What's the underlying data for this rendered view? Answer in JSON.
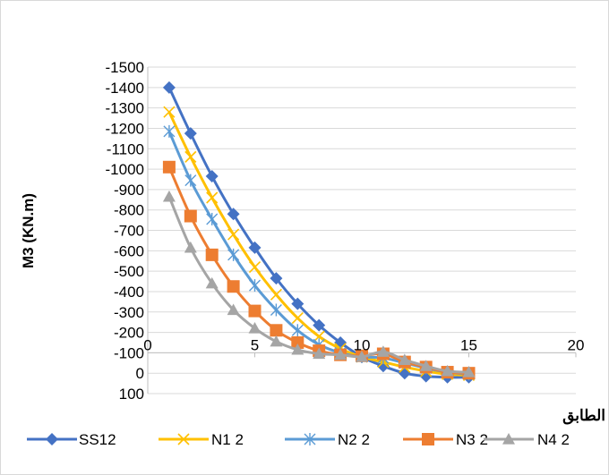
{
  "chart_data": {
    "type": "line",
    "xlabel": "الطابق",
    "ylabel": "M3 (KN.m)",
    "xlim": [
      0,
      20
    ],
    "ylim": [
      -1500,
      100
    ],
    "y_reversed": true,
    "x_axis_crosses_at_y": -100,
    "grid": "horizontal",
    "legend_position": "bottom",
    "x_ticks": [
      0,
      5,
      10,
      15,
      20
    ],
    "y_ticks": [
      100,
      0,
      -100,
      -200,
      -300,
      -400,
      -500,
      -600,
      -700,
      -800,
      -900,
      -1000,
      -1100,
      -1200,
      -1300,
      -1400,
      -1500
    ],
    "x_tick_labels": [
      "0",
      "5",
      "10",
      "15",
      "20"
    ],
    "y_tick_labels": [
      "100",
      "0",
      "-100",
      "-200",
      "-300",
      "-400",
      "-500",
      "-600",
      "-700",
      "-800",
      "-900",
      "-1000",
      "-1100",
      "-1200",
      "-1300",
      "-1400",
      "-1500"
    ],
    "x": [
      1,
      2,
      3,
      4,
      5,
      6,
      7,
      8,
      9,
      10,
      11,
      12,
      13,
      14,
      15
    ],
    "series": [
      {
        "name": "SS12",
        "color": "#4472C4",
        "marker": "diamond",
        "values": [
          -1400,
          -1175,
          -965,
          -780,
          -615,
          -465,
          -340,
          -235,
          -150,
          -80,
          -35,
          0,
          15,
          20,
          20
        ]
      },
      {
        "name": "N1 2",
        "color": "#FFC000",
        "marker": "x",
        "values": [
          -1280,
          -1060,
          -860,
          -680,
          -520,
          -385,
          -270,
          -180,
          -120,
          -80,
          -55,
          -30,
          -10,
          5,
          10
        ]
      },
      {
        "name": "N2 2",
        "color": "#5B9BD5",
        "marker": "star",
        "values": [
          -1185,
          -945,
          -755,
          -580,
          -430,
          -310,
          -210,
          -140,
          -100,
          -80,
          -75,
          -50,
          -25,
          -5,
          5
        ]
      },
      {
        "name": "N3 2",
        "color": "#ED7D31",
        "marker": "square",
        "values": [
          -1010,
          -770,
          -580,
          -425,
          -305,
          -210,
          -150,
          -110,
          -90,
          -85,
          -95,
          -55,
          -30,
          -5,
          0
        ]
      },
      {
        "name": "N4 2",
        "color": "#A5A5A5",
        "marker": "triangle",
        "values": [
          -865,
          -615,
          -440,
          -310,
          -220,
          -155,
          -115,
          -95,
          -90,
          -80,
          -105,
          -65,
          -35,
          -10,
          -5
        ]
      }
    ]
  }
}
